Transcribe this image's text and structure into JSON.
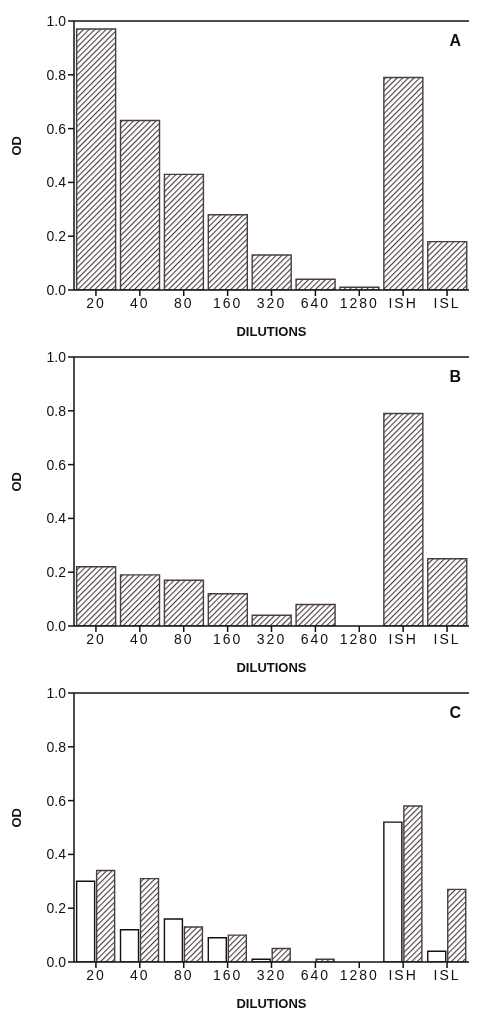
{
  "chart_data": [
    {
      "type": "bar",
      "title": "A",
      "xlabel": "DILUTIONS",
      "ylabel": "OD",
      "categories": [
        "20",
        "40",
        "80",
        "160",
        "320",
        "640",
        "1280",
        "ISH",
        "ISL"
      ],
      "series": [
        {
          "color": "#4a3b44",
          "values": [
            0.97,
            0.63,
            0.43,
            0.28,
            0.13,
            0.04,
            0.01,
            0.79,
            0.18
          ]
        }
      ],
      "ylim": [
        0,
        1
      ],
      "yticks": [
        {
          "value": 0,
          "label": "0.0"
        },
        {
          "value": 0.2,
          "label": "0.2"
        },
        {
          "value": 0.4,
          "label": "0.4"
        },
        {
          "value": 0.6,
          "label": "0.6"
        },
        {
          "value": 0.8,
          "label": "0.8"
        },
        {
          "value": 1,
          "label": "1.0"
        }
      ],
      "grid": false,
      "legend": false
    },
    {
      "type": "bar",
      "title": "B",
      "xlabel": "DILUTIONS",
      "ylabel": "OD",
      "categories": [
        "20",
        "40",
        "80",
        "160",
        "320",
        "640",
        "1280",
        "ISH",
        "ISL"
      ],
      "series": [
        {
          "color": "#4a3b44",
          "values": [
            0.22,
            0.19,
            0.17,
            0.12,
            0.04,
            0.08,
            null,
            0.79,
            0.25
          ]
        }
      ],
      "ylim": [
        0,
        1
      ],
      "yticks": [
        {
          "value": 0,
          "label": "0.0"
        },
        {
          "value": 0.2,
          "label": "0.2"
        },
        {
          "value": 0.4,
          "label": "0.4"
        },
        {
          "value": 0.6,
          "label": "0.6"
        },
        {
          "value": 0.8,
          "label": "0.8"
        },
        {
          "value": 1,
          "label": "1.0"
        }
      ],
      "grid": false,
      "legend": false
    },
    {
      "type": "bar",
      "title": "C",
      "xlabel": "DILUTIONS",
      "ylabel": "OD",
      "categories": [
        "20",
        "40",
        "80",
        "160",
        "320",
        "640",
        "1280",
        "ISH",
        "ISL"
      ],
      "series": [
        {
          "color": "#ffffff",
          "values": [
            0.3,
            0.12,
            0.16,
            0.09,
            0.01,
            0,
            0,
            0.52,
            0.04
          ]
        },
        {
          "color": "#4a3b44",
          "values": [
            0.34,
            0.31,
            0.13,
            0.1,
            0.05,
            0.01,
            0,
            0.58,
            0.27
          ]
        }
      ],
      "ylim": [
        0,
        1
      ],
      "yticks": [
        {
          "value": 0,
          "label": "0.0"
        },
        {
          "value": 0.2,
          "label": "0.2"
        },
        {
          "value": 0.4,
          "label": "0.4"
        },
        {
          "value": 0.6,
          "label": "0.6"
        },
        {
          "value": 0.8,
          "label": "0.8"
        },
        {
          "value": 1,
          "label": "1.0"
        }
      ],
      "grid": false,
      "legend": false
    }
  ]
}
